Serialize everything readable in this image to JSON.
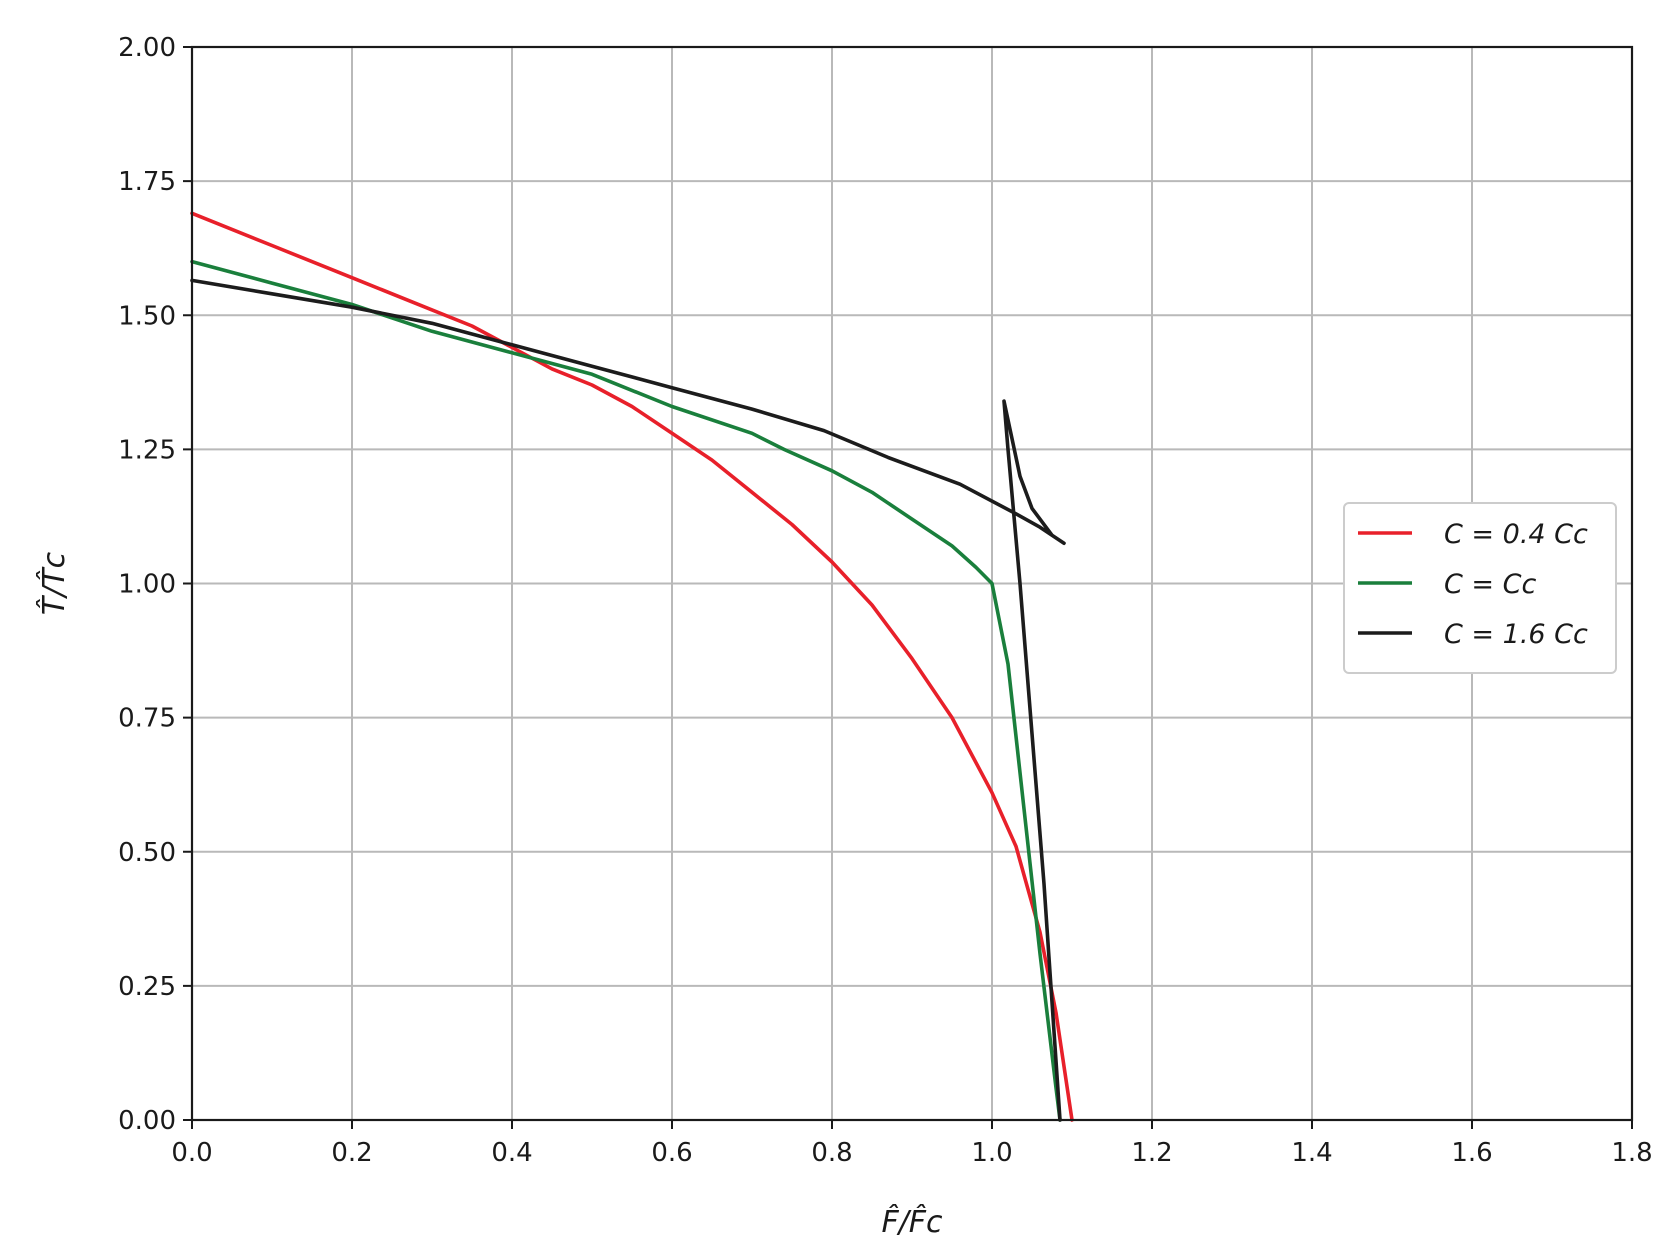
{
  "chart_data": {
    "type": "line",
    "xlabel": "F̂/F̂c",
    "ylabel": "T̂/T̂c",
    "xlim": [
      0.0,
      1.8
    ],
    "ylim": [
      0.0,
      2.0
    ],
    "xticks": [
      "0.0",
      "0.2",
      "0.4",
      "0.6",
      "0.8",
      "1.0",
      "1.2",
      "1.4",
      "1.6",
      "1.8"
    ],
    "yticks": [
      "0.00",
      "0.25",
      "0.50",
      "0.75",
      "1.00",
      "1.25",
      "1.50",
      "1.75",
      "2.00"
    ],
    "grid": true,
    "legend_position": "center-right",
    "series": [
      {
        "name": "C = 0.4 Cc",
        "color": "#e8202a",
        "x": [
          0.0,
          0.1,
          0.2,
          0.3,
          0.35,
          0.4,
          0.45,
          0.5,
          0.55,
          0.6,
          0.65,
          0.7,
          0.75,
          0.8,
          0.85,
          0.9,
          0.95,
          1.0,
          1.03,
          1.06,
          1.08,
          1.1
        ],
        "y": [
          1.69,
          1.63,
          1.57,
          1.51,
          1.48,
          1.44,
          1.4,
          1.37,
          1.33,
          1.28,
          1.23,
          1.17,
          1.11,
          1.04,
          0.96,
          0.86,
          0.75,
          0.61,
          0.51,
          0.35,
          0.2,
          0.0
        ]
      },
      {
        "name": "C = Cc",
        "color": "#1a7f3c",
        "x": [
          0.0,
          0.1,
          0.2,
          0.3,
          0.4,
          0.5,
          0.6,
          0.7,
          0.74,
          0.8,
          0.85,
          0.9,
          0.95,
          0.98,
          1.0,
          1.02,
          1.04,
          1.06,
          1.08,
          1.085
        ],
        "y": [
          1.6,
          1.56,
          1.52,
          1.47,
          1.43,
          1.39,
          1.33,
          1.28,
          1.25,
          1.21,
          1.17,
          1.12,
          1.07,
          1.03,
          1.0,
          0.85,
          0.58,
          0.31,
          0.06,
          0.0
        ]
      },
      {
        "name": "C = 1.6 Cc",
        "color": "#1c1c1c",
        "x": [
          0.0,
          0.1,
          0.2,
          0.3,
          0.4,
          0.5,
          0.6,
          0.7,
          0.79,
          0.87,
          0.96,
          1.03,
          1.06,
          1.09,
          1.075,
          1.05,
          1.035,
          1.025,
          1.015,
          1.02,
          1.035,
          1.05,
          1.065,
          1.075,
          1.085
        ],
        "y": [
          1.565,
          1.54,
          1.515,
          1.485,
          1.445,
          1.405,
          1.365,
          1.325,
          1.285,
          1.235,
          1.185,
          1.13,
          1.105,
          1.075,
          1.09,
          1.14,
          1.2,
          1.27,
          1.34,
          1.25,
          1.0,
          0.72,
          0.44,
          0.22,
          0.0
        ]
      }
    ]
  }
}
